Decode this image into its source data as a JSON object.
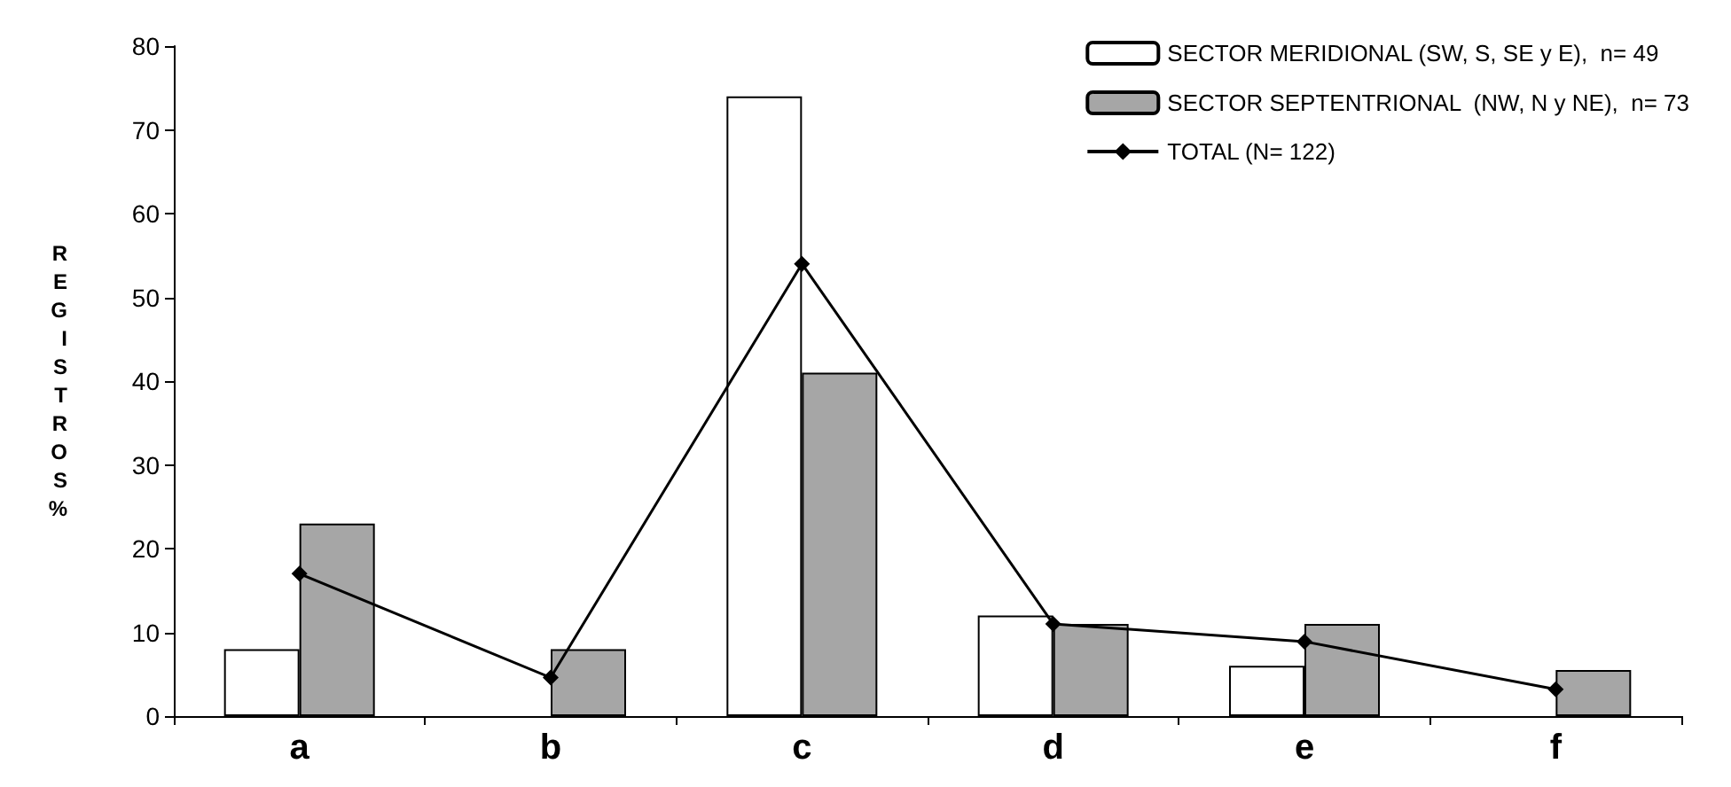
{
  "chart_data": {
    "type": "bar",
    "categories": [
      "a",
      "b",
      "c",
      "d",
      "e",
      "f"
    ],
    "ylabel": "REGISTROS %",
    "ylim": [
      0,
      80
    ],
    "yticks": [
      0,
      10,
      20,
      30,
      40,
      50,
      60,
      70,
      80
    ],
    "grid": false,
    "legend": "top right",
    "series": [
      {
        "name": "SECTOR MERIDIONAL (SW, S, SE y E),  n= 49",
        "color": "#ffffff",
        "values": [
          8,
          null,
          74,
          12,
          6,
          null
        ]
      },
      {
        "name": "SECTOR SEPTENTRIONAL  (NW, N y NE),  n= 73",
        "color": "#a6a6a6",
        "values": [
          23,
          8,
          41,
          11,
          11,
          5.5
        ]
      },
      {
        "name": "TOTAL (N= 122)",
        "type": "line",
        "color": "#000000",
        "marker": "diamond",
        "values": [
          17,
          4.6,
          54,
          11,
          8.9,
          3.2
        ]
      }
    ]
  }
}
